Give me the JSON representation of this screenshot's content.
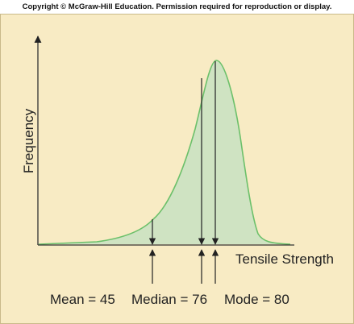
{
  "copyright": "Copyright © McGraw-Hill Education. Permission required for reproduction or display.",
  "axes": {
    "ylabel": "Frequency",
    "xlabel": "Tensile Strength"
  },
  "annotations": [
    {
      "id": "mean",
      "label": "Mean = 45",
      "value": 45
    },
    {
      "id": "median",
      "label": "Median = 76",
      "value": 76
    },
    {
      "id": "mode",
      "label": "Mode = 80",
      "value": 80
    }
  ],
  "colors": {
    "background": "#f8ebc4",
    "fill": "#cfe3c2",
    "curve": "#6cc06a",
    "axis": "#333333",
    "arrow": "#222222"
  }
}
